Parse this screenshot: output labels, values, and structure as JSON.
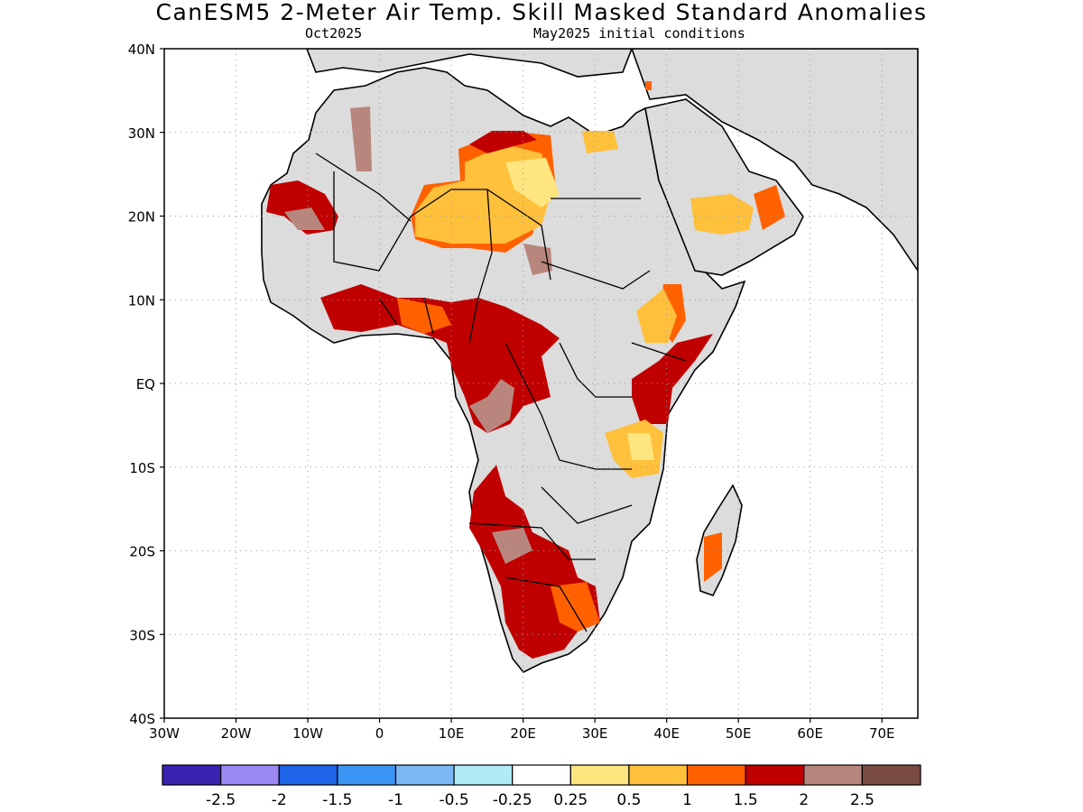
{
  "title": "CanESM5 2-Meter Air Temp. Skill Masked Standard Anomalies",
  "subtitle_left": "Oct2025",
  "subtitle_right": "May2025 initial conditions",
  "colors": {
    "land_masked": "#dcdcdc",
    "neutral": "#ffffff",
    "pos_025_05": "#ffe57f",
    "pos_05_1": "#ffc03b",
    "pos_1_15": "#ff6100",
    "pos_15_2": "#c00000",
    "pos_2_25": "#b8867c",
    "pos_gt_25": "#7a4b41"
  },
  "chart_data": {
    "type": "heatmap",
    "lon_range": [
      -30,
      75
    ],
    "lat_range": [
      -40,
      40
    ],
    "x_ticks": [
      "30W",
      "20W",
      "10W",
      "0",
      "10E",
      "20E",
      "30E",
      "40E",
      "50E",
      "60E",
      "70E"
    ],
    "y_ticks": [
      "40N",
      "30N",
      "20N",
      "10N",
      "EQ",
      "10S",
      "20S",
      "30S",
      "40S"
    ],
    "grid": true,
    "colorbar": {
      "labels": [
        "-2.5",
        "-2",
        "-1.5",
        "-1",
        "-0.5",
        "-0.25",
        "0.25",
        "0.5",
        "1",
        "1.5",
        "2",
        "2.5"
      ],
      "colors": [
        "#3b22b0",
        "#9b88f2",
        "#1e64e8",
        "#3a95f5",
        "#7ab8f5",
        "#b0ecf8",
        "#ffffff",
        "#ffe57f",
        "#ffc03b",
        "#ff6100",
        "#c00000",
        "#b8867c",
        "#7a4b41"
      ]
    }
  }
}
